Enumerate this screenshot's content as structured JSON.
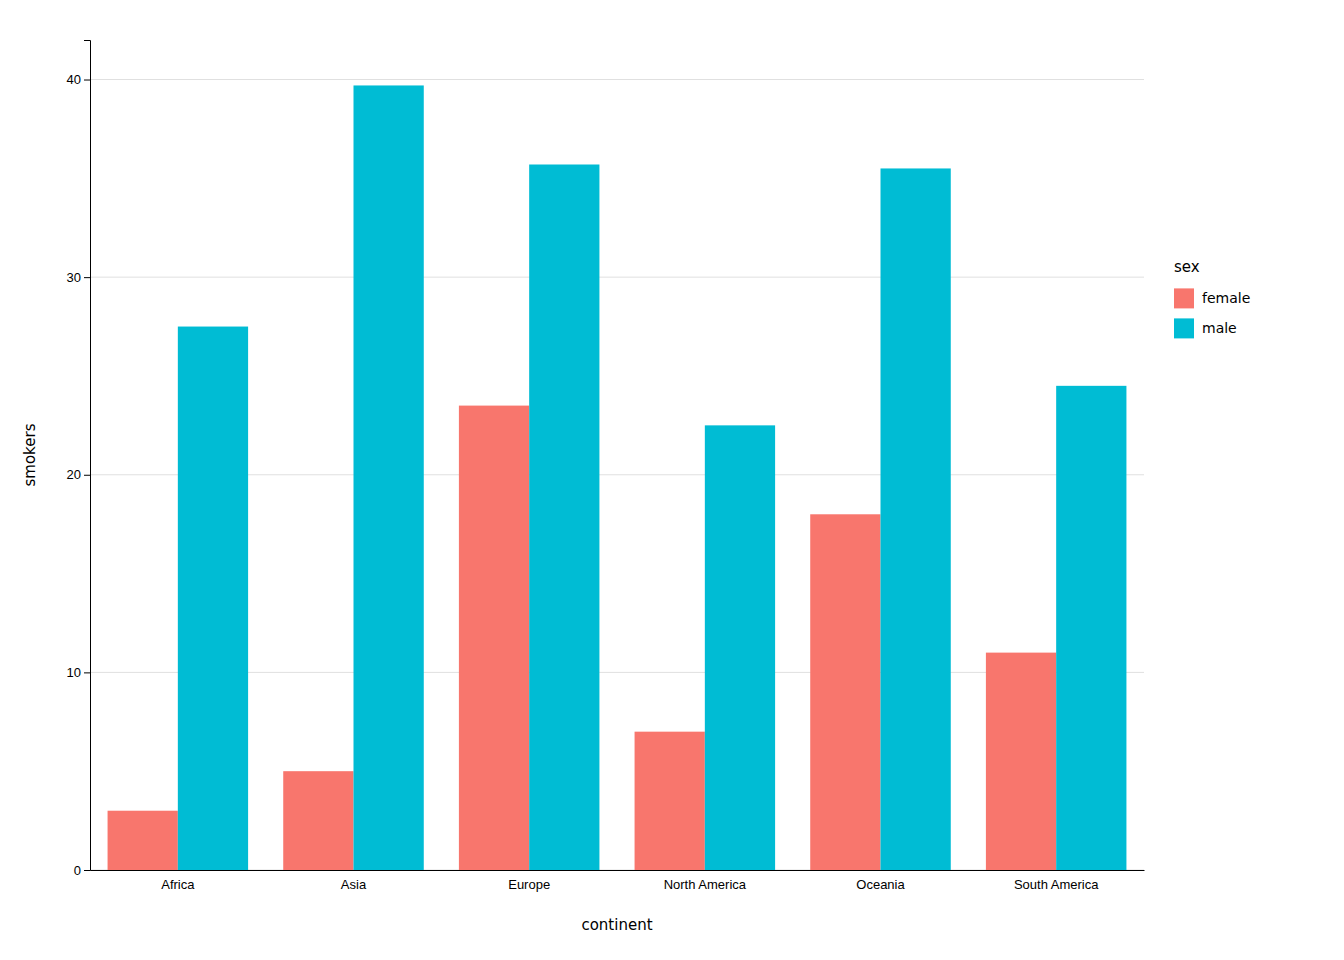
{
  "chart_data": {
    "type": "bar",
    "categories": [
      "Africa",
      "Asia",
      "Europe",
      "North America",
      "Oceania",
      "South America"
    ],
    "series": [
      {
        "name": "female",
        "color": "#F8766D",
        "values": [
          3,
          5,
          23.5,
          7,
          18,
          11
        ]
      },
      {
        "name": "male",
        "color": "#00BCD4",
        "values": [
          27.5,
          39.7,
          35.7,
          22.5,
          35.5,
          24.5
        ]
      }
    ],
    "x_label": "continent",
    "y_label": "smokers",
    "legend_title": "sex",
    "legend": "right",
    "ylim": [
      0,
      42
    ],
    "yticks": [
      0,
      10,
      20,
      30,
      40
    ],
    "grid": true
  }
}
